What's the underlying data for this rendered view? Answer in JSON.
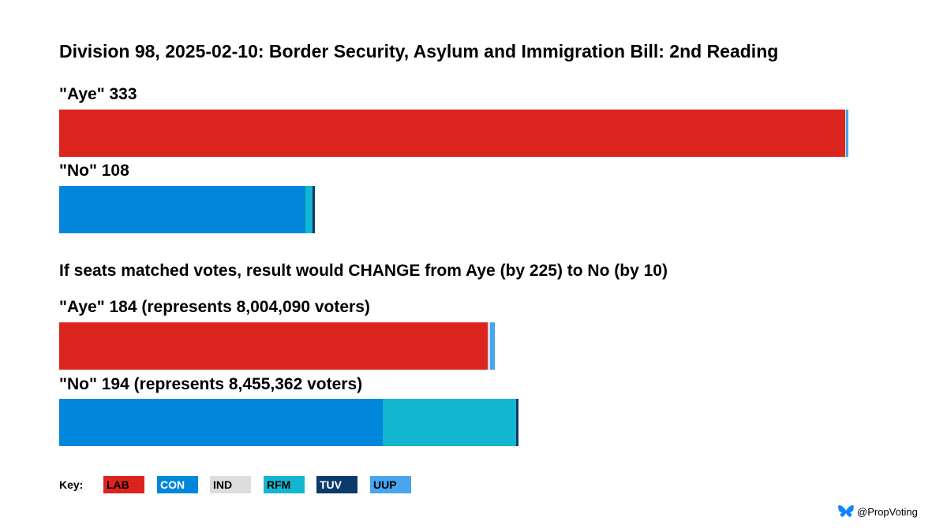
{
  "chart_data": {
    "type": "bar",
    "title": "Division 98, 2025-02-10: Border Security, Asylum and Immigration Bill: 2nd Reading",
    "scale_max": 333,
    "bars": [
      {
        "id": "actual-aye",
        "label": "\"Aye\" 333",
        "segments": [
          {
            "party": "LAB",
            "value": 332
          },
          {
            "party": "IND",
            "value": 0.3
          },
          {
            "party": "UUP",
            "value": 1
          }
        ]
      },
      {
        "id": "actual-no",
        "label": "\"No\" 108",
        "segments": [
          {
            "party": "CON",
            "value": 104
          },
          {
            "party": "RFM",
            "value": 3
          },
          {
            "party": "TUV",
            "value": 1
          }
        ]
      },
      {
        "id": "prop-aye",
        "label": "\"Aye\" 184 (represents 8,004,090 voters)",
        "segments": [
          {
            "party": "LAB",
            "value": 181
          },
          {
            "party": "IND",
            "value": 1
          },
          {
            "party": "UUP",
            "value": 2
          }
        ]
      },
      {
        "id": "prop-no",
        "label": "\"No\" 194 (represents 8,455,362 voters)",
        "segments": [
          {
            "party": "CON",
            "value": 136.5
          },
          {
            "party": "RFM",
            "value": 56.5
          },
          {
            "party": "TUV",
            "value": 1
          }
        ]
      }
    ],
    "headline": "If seats matched votes, result would CHANGE from Aye (by 225) to No (by 10)",
    "key_label": "Key:",
    "legend": [
      {
        "party": "LAB",
        "color": "#dc241f",
        "text_color": "#000000"
      },
      {
        "party": "CON",
        "color": "#0087dc",
        "text_color": "#ffffff"
      },
      {
        "party": "IND",
        "color": "#dddddd",
        "text_color": "#000000"
      },
      {
        "party": "RFM",
        "color": "#12b6cf",
        "text_color": "#000000"
      },
      {
        "party": "TUV",
        "color": "#0c3a6a",
        "text_color": "#ffffff"
      },
      {
        "party": "UUP",
        "color": "#48a5ee",
        "text_color": "#000000"
      }
    ]
  },
  "credit": {
    "icon": "butterfly-icon",
    "handle": "@PropVoting"
  }
}
